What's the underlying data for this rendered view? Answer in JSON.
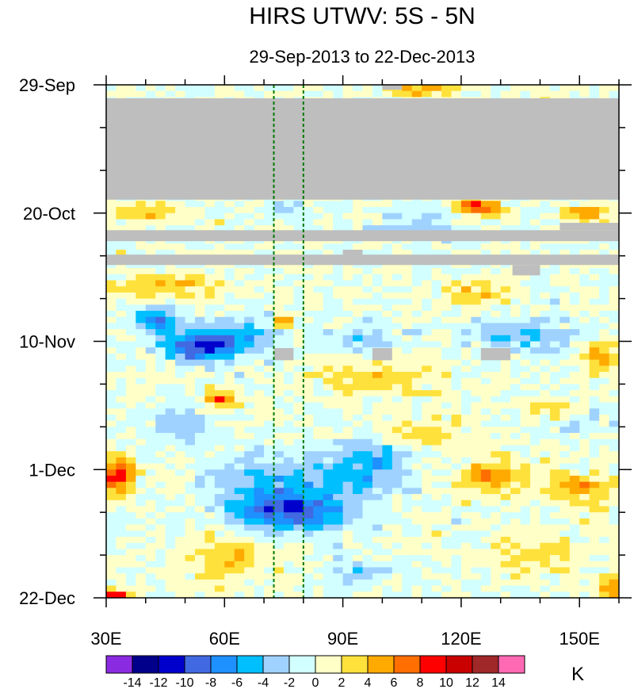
{
  "chart_data": {
    "type": "heatmap",
    "title": "HIRS UTWV: 5S - 5N",
    "subtitle": "29-Sep-2013 to 22-Dec-2013",
    "xlabel": "",
    "ylabel": "",
    "x_axis": {
      "range": [
        30,
        160
      ],
      "ticks": [
        {
          "value": 30,
          "label": "30E"
        },
        {
          "value": 60,
          "label": "60E"
        },
        {
          "value": 90,
          "label": "90E"
        },
        {
          "value": 120,
          "label": "120E"
        },
        {
          "value": 150,
          "label": "150E"
        }
      ],
      "minor_step": 10
    },
    "y_axis": {
      "range_days": [
        0,
        84
      ],
      "ticks": [
        {
          "value": 0,
          "label": "29-Sep"
        },
        {
          "value": 21,
          "label": "20-Oct"
        },
        {
          "value": 42,
          "label": "10-Nov"
        },
        {
          "value": 63,
          "label": "1-Dec"
        },
        {
          "value": 84,
          "label": "22-Dec"
        }
      ],
      "minor_step": 7
    },
    "reference_lines_lon": [
      72.5,
      80
    ],
    "colorbar": {
      "unit": "K",
      "levels": [
        -14,
        -12,
        -10,
        -8,
        -6,
        -4,
        -2,
        0,
        2,
        4,
        6,
        8,
        10,
        12,
        14
      ],
      "label_levels": [
        "-14",
        "-12",
        "-10",
        "-8",
        "-6",
        "-4",
        "-2",
        "0",
        "2",
        "4",
        "6",
        "8",
        "10",
        "12",
        "14"
      ],
      "colors": [
        "#8a2be2",
        "#00008b",
        "#0000cd",
        "#4169e1",
        "#1e90ff",
        "#00bfff",
        "#a0d2ff",
        "#d2ffff",
        "#ffffc8",
        "#ffe13c",
        "#ffaa00",
        "#ff6e00",
        "#ff0000",
        "#c80000",
        "#a02828",
        "#ff69b4"
      ]
    },
    "missing_data_color": "#bebebe",
    "missing_blocks": [
      {
        "lon": [
          30,
          160
        ],
        "day": [
          2.2,
          18.8
        ]
      },
      {
        "lon": [
          30,
          160
        ],
        "day": [
          23.8,
          25.6
        ]
      },
      {
        "lon": [
          145,
          160
        ],
        "day": [
          22.6,
          23.8
        ]
      },
      {
        "lon": [
          30,
          160
        ],
        "day": [
          27.8,
          29.5
        ]
      },
      {
        "lon": [
          90,
          95
        ],
        "day": [
          27,
          29.5
        ]
      },
      {
        "lon": [
          133,
          140
        ],
        "day": [
          29.5,
          31.2
        ]
      },
      {
        "lon": [
          72.5,
          77.5
        ],
        "day": [
          43.1,
          45.1
        ]
      },
      {
        "lon": [
          97.5,
          102.5
        ],
        "day": [
          43.1,
          45.1
        ]
      },
      {
        "lon": [
          125,
          132.5
        ],
        "day": [
          43.1,
          45.1
        ]
      },
      {
        "lon": [
          100,
          105
        ],
        "day": [
          0,
          0.8
        ]
      }
    ],
    "anomaly_features": [
      {
        "lon": 53,
        "day": 43,
        "sx": 8,
        "sy": 2.2,
        "amp": -10
      },
      {
        "lon": 43,
        "day": 38.5,
        "sx": 5,
        "sy": 2,
        "amp": -9
      },
      {
        "lon": 63,
        "day": 41.5,
        "sx": 9,
        "sy": 3,
        "amp": -6
      },
      {
        "lon": 78,
        "day": 70,
        "sx": 14,
        "sy": 3,
        "amp": -8
      },
      {
        "lon": 70,
        "day": 66,
        "sx": 12,
        "sy": 5,
        "amp": -5
      },
      {
        "lon": 92,
        "day": 64,
        "sx": 12,
        "sy": 4,
        "amp": -5
      },
      {
        "lon": 100,
        "day": 61,
        "sx": 6,
        "sy": 2,
        "amp": -4
      },
      {
        "lon": 135,
        "day": 41,
        "sx": 14,
        "sy": 3,
        "amp": -4
      },
      {
        "lon": 95,
        "day": 42,
        "sx": 8,
        "sy": 2.5,
        "amp": -4
      },
      {
        "lon": 110,
        "day": 23,
        "sx": 10,
        "sy": 2.5,
        "amp": -3
      },
      {
        "lon": 75,
        "day": 20,
        "sx": 5,
        "sy": 1.5,
        "amp": -3
      },
      {
        "lon": 150,
        "day": 54,
        "sx": 8,
        "sy": 3,
        "amp": -3
      },
      {
        "lon": 48,
        "day": 55,
        "sx": 8,
        "sy": 3,
        "amp": -3
      },
      {
        "lon": 95,
        "day": 80,
        "sx": 8,
        "sy": 2,
        "amp": -3
      },
      {
        "lon": 124,
        "day": 20,
        "sx": 5,
        "sy": 1.5,
        "amp": 9
      },
      {
        "lon": 33,
        "day": 64,
        "sx": 4,
        "sy": 3,
        "amp": 9
      },
      {
        "lon": 59,
        "day": 51.5,
        "sx": 4,
        "sy": 1.5,
        "amp": 8
      },
      {
        "lon": 128,
        "day": 64,
        "sx": 8,
        "sy": 3,
        "amp": 6
      },
      {
        "lon": 152,
        "day": 66,
        "sx": 10,
        "sy": 2.5,
        "amp": 5
      },
      {
        "lon": 145,
        "day": 53,
        "sx": 7,
        "sy": 2,
        "amp": 5
      },
      {
        "lon": 155,
        "day": 44,
        "sx": 4,
        "sy": 3,
        "amp": 5
      },
      {
        "lon": 152,
        "day": 21,
        "sx": 6,
        "sy": 1.5,
        "amp": 5
      },
      {
        "lon": 45,
        "day": 33,
        "sx": 15,
        "sy": 2,
        "amp": 4
      },
      {
        "lon": 110,
        "day": 57,
        "sx": 8,
        "sy": 2,
        "amp": 4
      },
      {
        "lon": 110,
        "day": 0.8,
        "sx": 10,
        "sy": 1,
        "amp": 5
      },
      {
        "lon": 40,
        "day": 21,
        "sx": 8,
        "sy": 1.5,
        "amp": 4
      },
      {
        "lon": 125,
        "day": 34,
        "sx": 10,
        "sy": 2,
        "amp": 3
      },
      {
        "lon": 60,
        "day": 78,
        "sx": 10,
        "sy": 4,
        "amp": 4
      },
      {
        "lon": 140,
        "day": 77,
        "sx": 12,
        "sy": 3,
        "amp": 3
      },
      {
        "lon": 32,
        "day": 83.5,
        "sx": 3,
        "sy": 1,
        "amp": 10
      },
      {
        "lon": 158,
        "day": 82,
        "sx": 3,
        "sy": 2,
        "amp": 6
      },
      {
        "lon": 75,
        "day": 39,
        "sx": 2,
        "sy": 1,
        "amp": 7
      },
      {
        "lon": 100,
        "day": 48,
        "sx": 15,
        "sy": 3,
        "amp": 3
      }
    ],
    "noise_amplitude": 2.6,
    "grid_resolution": {
      "lon_step": 2.5,
      "day_step": 1
    }
  }
}
